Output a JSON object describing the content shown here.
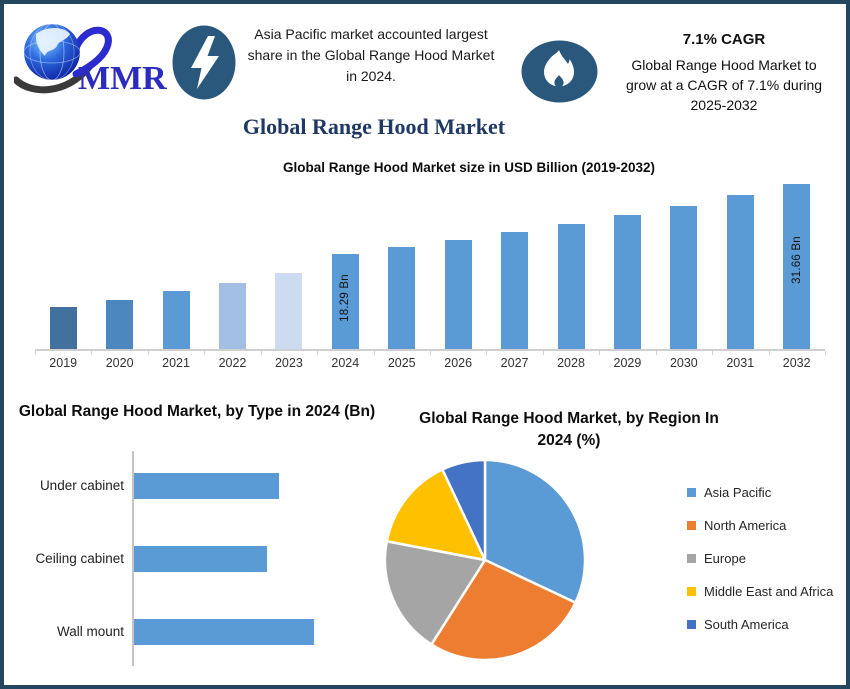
{
  "header": {
    "logo_text": "MMR",
    "highlight_text": "Asia Pacific market accounted largest share in the Global Range Hood Market in 2024.",
    "cagr_heading": "7.1% CAGR",
    "cagr_body": "Global Range Hood Market to grow at a CAGR of 7.1% during 2025-2032"
  },
  "main_title": "Global Range Hood Market",
  "colors": {
    "border": "#24465E",
    "title_navy": "#1F3864",
    "icon_circle_blue": "#2A587C",
    "logo_blue": "#2B2BBF",
    "primary_bar_blue": "#5B9BD5",
    "axis_gray": "#CFCFCF"
  },
  "chart_data": [
    {
      "id": "market_size",
      "type": "bar",
      "title": "Global Range Hood Market size in USD Billion (2019-2032)",
      "unit": "USD Billion",
      "ylim": [
        0,
        35
      ],
      "grid": false,
      "categories": [
        "2019",
        "2020",
        "2021",
        "2022",
        "2023",
        "2024",
        "2025",
        "2026",
        "2027",
        "2028",
        "2029",
        "2030",
        "2031",
        "2032"
      ],
      "values": [
        8.0,
        9.4,
        11.1,
        12.7,
        14.6,
        18.29,
        19.6,
        21.0,
        22.5,
        24.1,
        25.8,
        27.6,
        29.6,
        31.66
      ],
      "bar_value_labels": {
        "2024": "18.29 Bn",
        "2032": "31.66 Bn"
      },
      "bar_colors": [
        "#41719C",
        "#4D87C0",
        "#5B9BD5",
        "#A2BEE3",
        "#CDDBF0",
        "#5B9BD5",
        "#5B9BD5",
        "#5B9BD5",
        "#5B9BD5",
        "#5B9BD5",
        "#5B9BD5",
        "#5B9BD5",
        "#5B9BD5",
        "#5B9BD5"
      ]
    },
    {
      "id": "by_type",
      "type": "bar",
      "orientation": "horizontal",
      "title": "Global Range Hood Market, by Type in 2024 (Bn)",
      "unit": "Bn",
      "categories": [
        "Under cabinet",
        "Ceiling cabinet",
        "Wall mount"
      ],
      "values": [
        5.8,
        5.3,
        7.2
      ],
      "bar_color": "#5B9BD5"
    },
    {
      "id": "by_region",
      "type": "pie",
      "title": "Global Range Hood Market, by Region In 2024 (%)",
      "unit": "%",
      "legend_position": "right",
      "labels": [
        "Asia Pacific",
        "North America",
        "Europe",
        "Middle East and Africa",
        "South America"
      ],
      "values": [
        32,
        27,
        19,
        15,
        7
      ],
      "colors": [
        "#5B9BD5",
        "#ED7D31",
        "#A5A5A5",
        "#FFC000",
        "#4472C4"
      ]
    }
  ]
}
